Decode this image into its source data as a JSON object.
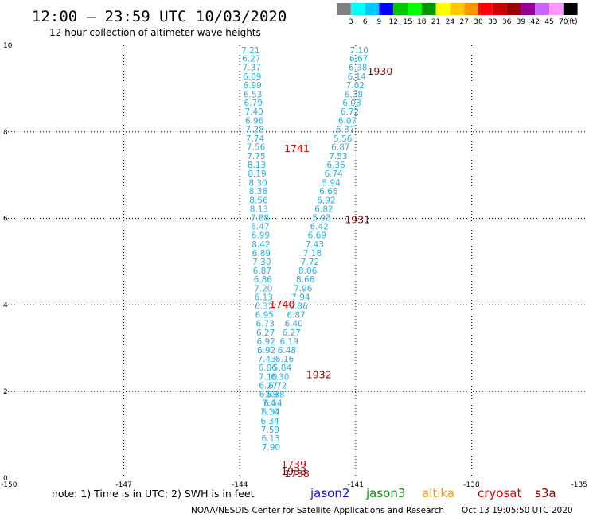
{
  "header": {
    "title": "12:00 – 23:59 UTC 10/03/2020",
    "subtitle": "12 hour collection of altimeter wave heights"
  },
  "colorbar": {
    "colors": [
      "#7f7f7f",
      "#00ffff",
      "#00c8ff",
      "#0000ff",
      "#00c800",
      "#00ff00",
      "#009600",
      "#ffff00",
      "#ffc800",
      "#ff9600",
      "#ff0000",
      "#c80000",
      "#960000",
      "#960096",
      "#c864ff",
      "#ff96ff",
      "#000000"
    ],
    "labels": [
      "3",
      "6",
      "9",
      "12",
      "15",
      "18",
      "21",
      "24",
      "27",
      "30",
      "33",
      "36",
      "39",
      "42",
      "45",
      "70"
    ],
    "unit": "(ft)"
  },
  "chart_data": {
    "type": "scatter",
    "title": "12:00 – 23:59 UTC 10/03/2020",
    "subtitle": "12 hour collection of altimeter wave heights",
    "xlim": [
      -150,
      -135
    ],
    "ylim": [
      0,
      10
    ],
    "xticks": [
      "-150",
      "-147",
      "-144",
      "-141",
      "-138",
      "-135"
    ],
    "yticks": [
      "0",
      "2",
      "4",
      "6",
      "8",
      "10"
    ],
    "grid": true,
    "series": [
      {
        "name": "jason2",
        "color": "#2ab0e0",
        "points": [
          {
            "x": -143.72,
            "y": 9.82,
            "v": "7.21"
          },
          {
            "x": -143.7,
            "y": 9.62,
            "v": "6.27"
          },
          {
            "x": -143.69,
            "y": 9.42,
            "v": "7.37"
          },
          {
            "x": -143.68,
            "y": 9.21,
            "v": "6.09"
          },
          {
            "x": -143.67,
            "y": 9.01,
            "v": "6.99"
          },
          {
            "x": -143.66,
            "y": 8.8,
            "v": "6.53"
          },
          {
            "x": -143.65,
            "y": 8.6,
            "v": "6.79"
          },
          {
            "x": -143.63,
            "y": 8.4,
            "v": "7.40"
          },
          {
            "x": -143.62,
            "y": 8.19,
            "v": "6.96"
          },
          {
            "x": -143.61,
            "y": 7.99,
            "v": "7.28"
          },
          {
            "x": -143.6,
            "y": 7.78,
            "v": "7.74"
          },
          {
            "x": -143.58,
            "y": 7.58,
            "v": "7.56"
          },
          {
            "x": -143.57,
            "y": 7.37,
            "v": "7.75"
          },
          {
            "x": -143.56,
            "y": 7.17,
            "v": "8.13"
          },
          {
            "x": -143.55,
            "y": 6.97,
            "v": "8.19"
          },
          {
            "x": -143.53,
            "y": 6.76,
            "v": "8.30"
          },
          {
            "x": -143.52,
            "y": 6.56,
            "v": "8.38"
          },
          {
            "x": -143.51,
            "y": 6.35,
            "v": "8.56"
          },
          {
            "x": -143.5,
            "y": 6.15,
            "v": "8.13"
          },
          {
            "x": -143.48,
            "y": 5.95,
            "v": "7.88"
          },
          {
            "x": -143.47,
            "y": 5.74,
            "v": "6.47"
          },
          {
            "x": -143.46,
            "y": 5.54,
            "v": "6.99"
          },
          {
            "x": -143.45,
            "y": 5.33,
            "v": "8.42"
          },
          {
            "x": -143.44,
            "y": 5.13,
            "v": "6.89"
          },
          {
            "x": -143.43,
            "y": 4.93,
            "v": "7.30"
          },
          {
            "x": -143.42,
            "y": 4.72,
            "v": "6.87"
          },
          {
            "x": -143.4,
            "y": 4.52,
            "v": "6.86"
          },
          {
            "x": -143.39,
            "y": 4.31,
            "v": "7.20"
          },
          {
            "x": -143.38,
            "y": 4.11,
            "v": "6.13"
          },
          {
            "x": -143.37,
            "y": 3.91,
            "v": "6.32"
          },
          {
            "x": -143.36,
            "y": 3.7,
            "v": "6.95"
          },
          {
            "x": -143.34,
            "y": 3.5,
            "v": "6.73"
          },
          {
            "x": -143.33,
            "y": 3.29,
            "v": "6.27"
          },
          {
            "x": -143.32,
            "y": 3.09,
            "v": "6.92"
          },
          {
            "x": -143.31,
            "y": 2.89,
            "v": "6.92"
          },
          {
            "x": -143.3,
            "y": 2.68,
            "v": "7.43"
          },
          {
            "x": -143.28,
            "y": 2.48,
            "v": "6.86"
          },
          {
            "x": -143.27,
            "y": 2.27,
            "v": "7.10"
          },
          {
            "x": -143.26,
            "y": 2.07,
            "v": "6.27"
          },
          {
            "x": -143.25,
            "y": 1.87,
            "v": "6.89"
          },
          {
            "x": -143.24,
            "y": 1.66,
            "v": "7.4"
          },
          {
            "x": -143.23,
            "y": 1.46,
            "v": "7.10"
          },
          {
            "x": -143.22,
            "y": 1.25,
            "v": "6.34"
          },
          {
            "x": -143.21,
            "y": 1.05,
            "v": "7.59"
          },
          {
            "x": -143.2,
            "y": 0.85,
            "v": "6.13"
          },
          {
            "x": -143.19,
            "y": 0.64,
            "v": "7.90"
          }
        ],
        "pass_labels": [
          {
            "x": -142.52,
            "y": 7.54,
            "t": "1741",
            "color": "#e00000"
          },
          {
            "x": -142.9,
            "y": 3.93,
            "t": "1740",
            "color": "#e00000"
          },
          {
            "x": -142.6,
            "y": 0.24,
            "t": "1739",
            "color": "#e00000"
          },
          {
            "x": -142.52,
            "y": 0.02,
            "t": "1738",
            "color": "#e00000"
          }
        ]
      },
      {
        "name": "s3a",
        "color": "#2ab0e0",
        "points": [
          {
            "x": -140.91,
            "y": 9.82,
            "v": "7.10"
          },
          {
            "x": -140.92,
            "y": 9.62,
            "v": "6.67"
          },
          {
            "x": -140.94,
            "y": 9.42,
            "v": "6.38"
          },
          {
            "x": -140.97,
            "y": 9.21,
            "v": "6.14"
          },
          {
            "x": -141.01,
            "y": 9.01,
            "v": "7.02"
          },
          {
            "x": -141.05,
            "y": 8.8,
            "v": "6.38"
          },
          {
            "x": -141.1,
            "y": 8.6,
            "v": "6.08"
          },
          {
            "x": -141.15,
            "y": 8.4,
            "v": "6.72"
          },
          {
            "x": -141.21,
            "y": 8.19,
            "v": "6.07"
          },
          {
            "x": -141.27,
            "y": 7.99,
            "v": "6.87"
          },
          {
            "x": -141.33,
            "y": 7.78,
            "v": "5.56"
          },
          {
            "x": -141.39,
            "y": 7.58,
            "v": "6.87"
          },
          {
            "x": -141.45,
            "y": 7.37,
            "v": "7.53"
          },
          {
            "x": -141.51,
            "y": 7.17,
            "v": "6.36"
          },
          {
            "x": -141.57,
            "y": 6.97,
            "v": "6.74"
          },
          {
            "x": -141.63,
            "y": 6.76,
            "v": "5.94"
          },
          {
            "x": -141.7,
            "y": 6.56,
            "v": "6.66"
          },
          {
            "x": -141.76,
            "y": 6.35,
            "v": "6.92"
          },
          {
            "x": -141.82,
            "y": 6.15,
            "v": "6.82"
          },
          {
            "x": -141.88,
            "y": 5.95,
            "v": "5.93"
          },
          {
            "x": -141.94,
            "y": 5.74,
            "v": "6.42"
          },
          {
            "x": -142.0,
            "y": 5.54,
            "v": "6.69"
          },
          {
            "x": -142.06,
            "y": 5.33,
            "v": "7.43"
          },
          {
            "x": -142.12,
            "y": 5.13,
            "v": "7.18"
          },
          {
            "x": -142.18,
            "y": 4.93,
            "v": "7.72"
          },
          {
            "x": -142.24,
            "y": 4.72,
            "v": "8.06"
          },
          {
            "x": -142.3,
            "y": 4.52,
            "v": "8.66"
          },
          {
            "x": -142.36,
            "y": 4.31,
            "v": "7.96"
          },
          {
            "x": -142.42,
            "y": 4.11,
            "v": "7.94"
          },
          {
            "x": -142.48,
            "y": 3.91,
            "v": "6.86"
          },
          {
            "x": -142.54,
            "y": 3.7,
            "v": "6.87"
          },
          {
            "x": -142.6,
            "y": 3.5,
            "v": "6.40"
          },
          {
            "x": -142.66,
            "y": 3.29,
            "v": "6.27"
          },
          {
            "x": -142.72,
            "y": 3.09,
            "v": "6.19"
          },
          {
            "x": -142.78,
            "y": 2.89,
            "v": "6.48"
          },
          {
            "x": -142.84,
            "y": 2.68,
            "v": "6.16"
          },
          {
            "x": -142.9,
            "y": 2.48,
            "v": "5.84"
          },
          {
            "x": -142.96,
            "y": 2.27,
            "v": "6.30"
          },
          {
            "x": -143.02,
            "y": 2.07,
            "v": "6.72"
          },
          {
            "x": -143.08,
            "y": 1.87,
            "v": "6.88"
          },
          {
            "x": -143.14,
            "y": 1.66,
            "v": "6.54"
          },
          {
            "x": -143.2,
            "y": 1.46,
            "v": "6.34"
          }
        ],
        "pass_labels": [
          {
            "x": -140.37,
            "y": 9.32,
            "t": "1930",
            "color": "#8b0000"
          },
          {
            "x": -140.95,
            "y": 5.89,
            "t": "1931",
            "color": "#8b0000"
          },
          {
            "x": -141.95,
            "y": 2.31,
            "t": "1932",
            "color": "#8b0000"
          },
          {
            "x": -142.6,
            "y": 0.07,
            "t": "1933",
            "color": "#8b0000"
          }
        ]
      }
    ]
  },
  "note": "note:  1) Time is in UTC;  2) SWH is in feet",
  "legend": [
    {
      "label": "jason2",
      "color": "#1010e0"
    },
    {
      "label": "jason3",
      "color": "#109010"
    },
    {
      "label": "altika",
      "color": "#ff9600"
    },
    {
      "label": "cryosat",
      "color": "#e00000"
    },
    {
      "label": "s3a",
      "color": "#8b0000"
    }
  ],
  "footer": {
    "credit": "NOAA/NESDIS Center for Satellite Applications and Research",
    "timestamp": "Oct 13 19:05:50 UTC 2020"
  }
}
